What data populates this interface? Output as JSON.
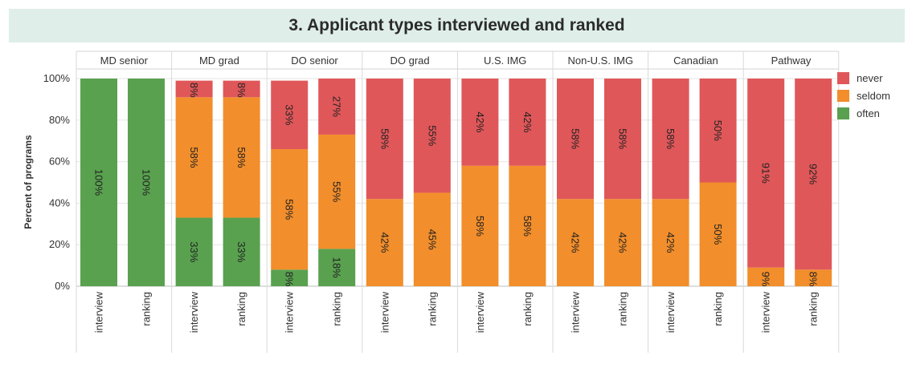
{
  "chart_data": {
    "type": "bar",
    "stacked": true,
    "normalized": true,
    "title": "3. Applicant types interviewed and ranked",
    "ylabel": "Percent of programs",
    "ylim": [
      0,
      100
    ],
    "yticks": [
      "0%",
      "20%",
      "40%",
      "60%",
      "80%",
      "100%"
    ],
    "grid": true,
    "legend_position": "right",
    "series_names": [
      "never",
      "seldom",
      "often"
    ],
    "colors": {
      "never": "#e05759",
      "seldom": "#f28e2b",
      "often": "#59a14f"
    },
    "panels": [
      {
        "name": "MD senior",
        "bars": [
          {
            "label": "interview",
            "often": 100,
            "seldom": 0,
            "never": 0,
            "labels": {
              "often": "100%"
            }
          },
          {
            "label": "ranking",
            "often": 100,
            "seldom": 0,
            "never": 0,
            "labels": {
              "often": "100%"
            }
          }
        ]
      },
      {
        "name": "MD grad",
        "bars": [
          {
            "label": "interview",
            "often": 33,
            "seldom": 58,
            "never": 8,
            "labels": {
              "often": "33%",
              "seldom": "58%",
              "never": "8%"
            }
          },
          {
            "label": "ranking",
            "often": 33,
            "seldom": 58,
            "never": 8,
            "labels": {
              "often": "33%",
              "seldom": "58%",
              "never": "8%"
            }
          }
        ]
      },
      {
        "name": "DO senior",
        "bars": [
          {
            "label": "interview",
            "often": 8,
            "seldom": 58,
            "never": 33,
            "labels": {
              "often": "8%",
              "seldom": "58%",
              "never": "33%"
            }
          },
          {
            "label": "ranking",
            "often": 18,
            "seldom": 55,
            "never": 27,
            "labels": {
              "often": "18%",
              "seldom": "55%",
              "never": "27%"
            }
          }
        ]
      },
      {
        "name": "DO grad",
        "bars": [
          {
            "label": "interview",
            "often": 0,
            "seldom": 42,
            "never": 58,
            "labels": {
              "seldom": "42%",
              "never": "58%"
            }
          },
          {
            "label": "ranking",
            "often": 0,
            "seldom": 45,
            "never": 55,
            "labels": {
              "seldom": "45%",
              "never": "55%"
            }
          }
        ]
      },
      {
        "name": "U.S. IMG",
        "bars": [
          {
            "label": "interview",
            "often": 0,
            "seldom": 58,
            "never": 42,
            "labels": {
              "seldom": "58%",
              "never": "42%"
            }
          },
          {
            "label": "ranking",
            "often": 0,
            "seldom": 58,
            "never": 42,
            "labels": {
              "seldom": "58%",
              "never": "42%"
            }
          }
        ]
      },
      {
        "name": "Non-U.S. IMG",
        "bars": [
          {
            "label": "interview",
            "often": 0,
            "seldom": 42,
            "never": 58,
            "labels": {
              "seldom": "42%",
              "never": "58%"
            }
          },
          {
            "label": "ranking",
            "often": 0,
            "seldom": 42,
            "never": 58,
            "labels": {
              "seldom": "42%",
              "never": "58%"
            }
          }
        ]
      },
      {
        "name": "Canadian",
        "bars": [
          {
            "label": "interview",
            "often": 0,
            "seldom": 42,
            "never": 58,
            "labels": {
              "seldom": "42%",
              "never": "58%"
            }
          },
          {
            "label": "ranking",
            "often": 0,
            "seldom": 50,
            "never": 50,
            "labels": {
              "seldom": "50%",
              "never": "50%"
            }
          }
        ]
      },
      {
        "name": "Pathway",
        "bars": [
          {
            "label": "interview",
            "often": 0,
            "seldom": 9,
            "never": 91,
            "labels": {
              "seldom": "9%",
              "never": "91%"
            }
          },
          {
            "label": "ranking",
            "often": 0,
            "seldom": 8,
            "never": 92,
            "labels": {
              "seldom": "8%",
              "never": "92%"
            }
          }
        ]
      }
    ]
  }
}
